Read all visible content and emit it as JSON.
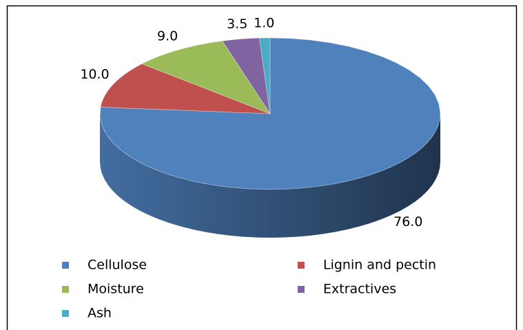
{
  "chart_data": {
    "type": "pie3d",
    "categories": [
      "Cellulose",
      "Lignin and pectin",
      "Moisture",
      "Extractives",
      "Ash"
    ],
    "values": [
      76.0,
      10.0,
      9.0,
      3.5,
      1.0
    ],
    "value_labels": [
      "76.0",
      "10.0",
      "9.0",
      "3.5",
      "1.0"
    ],
    "colors": [
      "#4f81bd",
      "#c0504d",
      "#9bbb59",
      "#8064a2",
      "#4bacc6"
    ],
    "legend": "bottom"
  }
}
